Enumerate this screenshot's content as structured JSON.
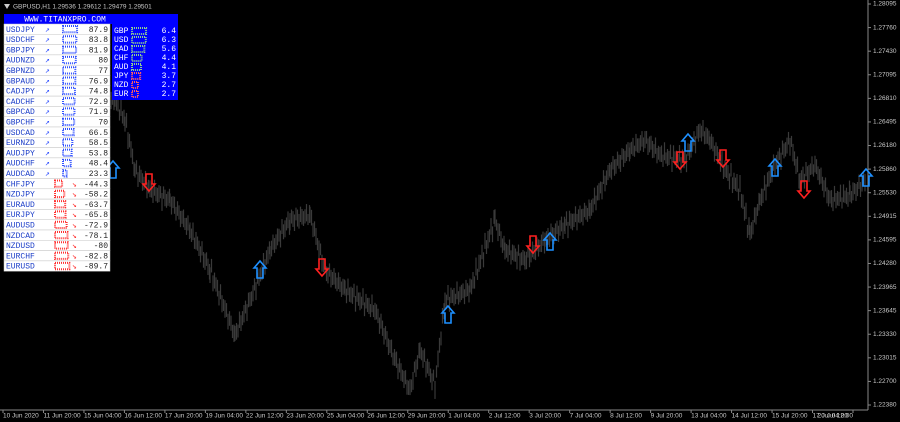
{
  "header": {
    "title": "GBPUSD,H1  1.29536 1.29612 1.29479 1.29501"
  },
  "panel": {
    "title": "WWW.TITANXPRO.COM",
    "pairs": [
      {
        "name": "USDJPY",
        "value": 87.9
      },
      {
        "name": "USDCHF",
        "value": 83.8
      },
      {
        "name": "GBPJPY",
        "value": 81.9
      },
      {
        "name": "AUDNZD",
        "value": 80.0
      },
      {
        "name": "GBPNZD",
        "value": 77.0
      },
      {
        "name": "GBPAUD",
        "value": 76.9
      },
      {
        "name": "CADJPY",
        "value": 74.8
      },
      {
        "name": "CADCHF",
        "value": 72.9
      },
      {
        "name": "GBPCAD",
        "value": 71.9
      },
      {
        "name": "GBPCHF",
        "value": 70.0
      },
      {
        "name": "USDCAD",
        "value": 66.5
      },
      {
        "name": "EURNZD",
        "value": 58.5
      },
      {
        "name": "AUDJPY",
        "value": 53.8
      },
      {
        "name": "AUDCHF",
        "value": 48.4
      },
      {
        "name": "AUDCAD",
        "value": 23.3
      },
      {
        "name": "CHFJPY",
        "value": -44.3
      },
      {
        "name": "NZDJPY",
        "value": -58.2
      },
      {
        "name": "EURAUD",
        "value": -63.7
      },
      {
        "name": "EURJPY",
        "value": -65.8
      },
      {
        "name": "AUDUSD",
        "value": -72.9
      },
      {
        "name": "NZDCAD",
        "value": -78.1
      },
      {
        "name": "NZDUSD",
        "value": -80.0
      },
      {
        "name": "EURCHF",
        "value": -82.8
      },
      {
        "name": "EURUSD",
        "value": -89.7
      }
    ],
    "strength": [
      {
        "name": "GBP",
        "value": 6.4
      },
      {
        "name": "USD",
        "value": 6.3
      },
      {
        "name": "CAD",
        "value": 5.6
      },
      {
        "name": "CHF",
        "value": 4.4
      },
      {
        "name": "AUD",
        "value": 4.1
      },
      {
        "name": "JPY",
        "value": 3.7
      },
      {
        "name": "NZD",
        "value": 2.7
      },
      {
        "name": "EUR",
        "value": 2.7
      }
    ]
  },
  "price_axis": [
    "1.28095",
    "1.27760",
    "1.27430",
    "1.27095",
    "1.26810",
    "1.26495",
    "1.26180",
    "1.25860",
    "1.25530",
    "1.24915",
    "1.24595",
    "1.24280",
    "1.23965",
    "1.23645",
    "1.23330",
    "1.23015",
    "1.22700",
    "1.22380"
  ],
  "time_axis": [
    "10 Jun 2020",
    "11 Jun 20:00",
    "15 Jun 04:00",
    "16 Jun 12:00",
    "17 Jun 20:00",
    "19 Jun 04:00",
    "22 Jun 12:00",
    "23 Jun 20:00",
    "25 Jun 04:00",
    "26 Jun 12:00",
    "29 Jun 20:00",
    "1 Jul 04:00",
    "2 Jul 12:00",
    "3 Jul 20:00",
    "7 Jul 04:00",
    "8 Jul 12:00",
    "9 Jul 20:00",
    "13 Jul 04:00",
    "14 Jul 12:00",
    "15 Jul 20:00",
    "17 Jul 04:00",
    "20 Jul 12:00"
  ]
}
